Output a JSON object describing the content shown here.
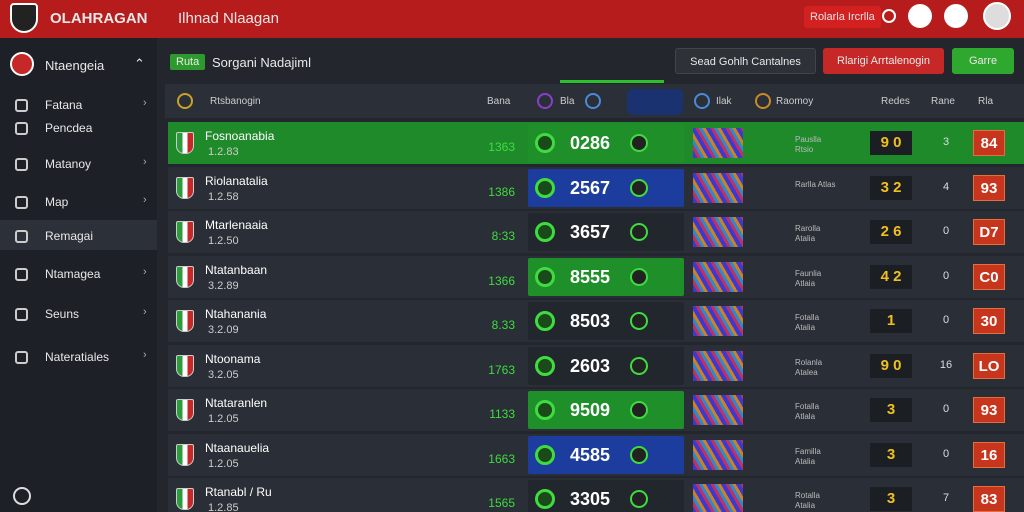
{
  "topbar": {
    "brand": "OLAHRAGAN",
    "title": "Ilhnad Nlaagan",
    "button": "Rolarla Ircrlla"
  },
  "sidebar": {
    "header": "Ntaengeia",
    "items": [
      "Fatana",
      "Pencdea",
      "Matanoy",
      "Map",
      "Remagai",
      "Ntamagea",
      "Seuns",
      "Nateratiales"
    ]
  },
  "main": {
    "tag": "Ruta",
    "title": "Sorgani Nadajiml",
    "buttons": [
      "Sead Gohlh Cantalnes",
      "Rlarigi Arrtalenogin",
      "Garre"
    ],
    "columns": [
      "Rtsbanogin",
      "Bana",
      "Bla",
      "Ilak",
      "Raomoy",
      "Redes",
      "Rane",
      "Rla"
    ],
    "rows": [
      {
        "name": "Fosnoanabia",
        "sub": "1.2.83",
        "odd": "1363",
        "main": "0286",
        "label": "Pauslla Rtsio",
        "score": "9 0",
        "count": "3",
        "badge": "84",
        "main_bg": "#1f8f2a",
        "row_bg": "#1f8a2a"
      },
      {
        "name": "Riolanatalia",
        "sub": "1.2.58",
        "odd": "1386",
        "main": "2567",
        "label": "Rarlla Atlas",
        "score": "3 2",
        "count": "4",
        "badge": "93",
        "main_bg": "#1d3d9e",
        "row_bg": "#2a2e36"
      },
      {
        "name": "Mtarlenaaia",
        "sub": "1.2.50",
        "odd": "8:33",
        "main": "3657",
        "label": "Rarolla Atalia",
        "score": "2 6",
        "count": "0",
        "badge": "D7",
        "main_bg": "#22262d",
        "row_bg": "#2a2e36"
      },
      {
        "name": "Ntatanbaan",
        "sub": "3.2.89",
        "odd": "1366",
        "main": "8555",
        "label": "Faunlia Atlaia",
        "score": "4 2",
        "count": "0",
        "badge": "C0",
        "main_bg": "#1f8f2a",
        "row_bg": "#2a2e36"
      },
      {
        "name": "Ntahanania",
        "sub": "3.2.09",
        "odd": "8.33",
        "main": "8503",
        "label": "Fotalla Atalia",
        "score": "1",
        "count": "0",
        "badge": "30",
        "main_bg": "#22262d",
        "row_bg": "#2a2e36"
      },
      {
        "name": "Ntoonama",
        "sub": "3.2.05",
        "odd": "1763",
        "main": "2603",
        "label": "Rolanla Atalea",
        "score": "9 0",
        "count": "16",
        "badge": "LO",
        "main_bg": "#22262d",
        "row_bg": "#2a2e36"
      },
      {
        "name": "Ntataranlen",
        "sub": "1.2.05",
        "odd": "1133",
        "main": "9509",
        "label": "Fotalla Atlala",
        "score": "3",
        "count": "0",
        "badge": "93",
        "main_bg": "#1f8f2a",
        "row_bg": "#2a2e36"
      },
      {
        "name": "Ntaanauelia",
        "sub": "1.2.05",
        "odd": "1663",
        "main": "4585",
        "label": "Familla Atalia",
        "score": "3",
        "count": "0",
        "badge": "16",
        "main_bg": "#1d3d9e",
        "row_bg": "#2a2e36"
      },
      {
        "name": "Rtanabl / Ru",
        "sub": "1.2.85",
        "odd": "1565",
        "main": "3305",
        "label": "Rotalla Atalia",
        "score": "3",
        "count": "7",
        "badge": "83",
        "main_bg": "#22262d",
        "row_bg": "#2a2e36"
      }
    ]
  }
}
